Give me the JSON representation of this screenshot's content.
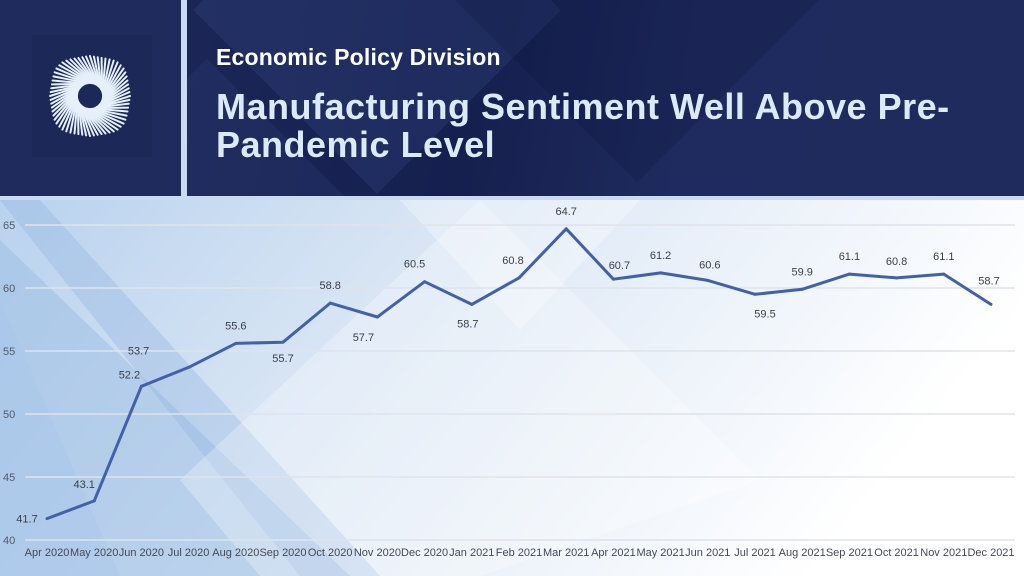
{
  "header": {
    "division": "Economic Policy Division",
    "title": "Manufacturing Sentiment Well Above Pre-Pandemic Level",
    "logo": "spiral-rays-logo"
  },
  "colors": {
    "header_bg": "#1e2a5a",
    "title_text": "#dceaf8",
    "line": "#4361a8",
    "accent_bar": "#c9daf1"
  },
  "chart_data": {
    "type": "line",
    "title": "Manufacturing Sentiment Well Above Pre-Pandemic Level",
    "xlabel": "",
    "ylabel": "",
    "ylim": [
      40,
      65
    ],
    "yticks": [
      "40",
      "45",
      "50",
      "55",
      "60",
      "65"
    ],
    "grid": true,
    "legend": "none",
    "categories": [
      "Apr 2020",
      "May 2020",
      "Jun 2020",
      "Jul 2020",
      "Aug 2020",
      "Sep 2020",
      "Oct 2020",
      "Nov 2020",
      "Dec 2020",
      "Jan 2021",
      "Feb 2021",
      "Mar 2021",
      "Apr 2021",
      "May 2021",
      "Jun 2021",
      "Jul 2021",
      "Aug 2021",
      "Sep 2021",
      "Oct 2021",
      "Nov 2021",
      "Dec 2021"
    ],
    "series": [
      {
        "name": "Manufacturing Sentiment",
        "values": [
          41.7,
          43.1,
          52.2,
          53.7,
          55.6,
          55.7,
          58.8,
          57.7,
          60.5,
          58.7,
          60.8,
          64.7,
          60.7,
          61.2,
          60.6,
          59.5,
          59.9,
          61.1,
          60.8,
          61.1,
          58.7
        ],
        "labels": [
          "41.7",
          "43.1",
          "52.2",
          "53.7",
          "55.6",
          "55.7",
          "58.8",
          "57.7",
          "60.5",
          "58.7",
          "60.8",
          "64.7",
          "60.7",
          "61.2",
          "60.6",
          "59.5",
          "59.9",
          "61.1",
          "60.8",
          "61.1",
          "58.7"
        ]
      }
    ]
  }
}
